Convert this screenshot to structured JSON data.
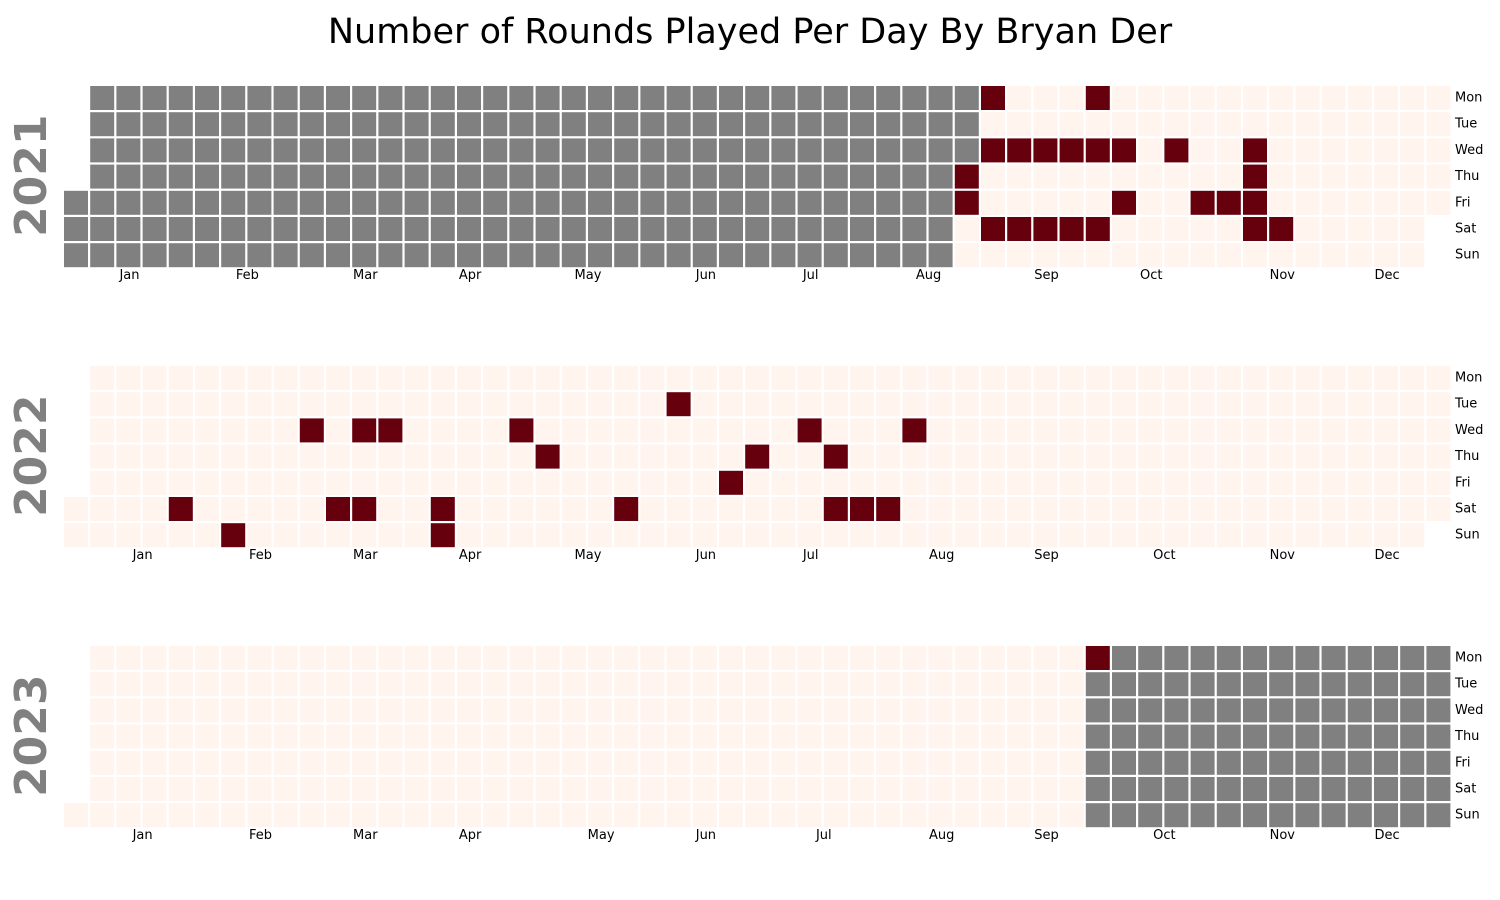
{
  "chart_data": {
    "type": "heatmap",
    "title": "Number of Rounds Played Per Day By Bryan Der",
    "day_labels": [
      "Mon",
      "Tue",
      "Wed",
      "Thu",
      "Fri",
      "Sat",
      "Sun"
    ],
    "month_labels": [
      "Jan",
      "Feb",
      "Mar",
      "Apr",
      "May",
      "Jun",
      "Jul",
      "Aug",
      "Sep",
      "Oct",
      "Nov",
      "Dec"
    ],
    "value_colors": {
      "no_data": "#808080",
      "zero": "#fff4ee",
      "played": "#67000d"
    },
    "years": [
      {
        "year": "2021",
        "data_range": [
          "2021-08-26",
          "2021-12-31"
        ],
        "played_dates": [
          "2021-08-26",
          "2021-08-27",
          "2021-08-30",
          "2021-09-01",
          "2021-09-04",
          "2021-09-08",
          "2021-09-11",
          "2021-09-15",
          "2021-09-18",
          "2021-09-22",
          "2021-09-25",
          "2021-09-27",
          "2021-09-29",
          "2021-10-02",
          "2021-10-06",
          "2021-10-08",
          "2021-10-20",
          "2021-10-29",
          "2021-11-05",
          "2021-11-10",
          "2021-11-11",
          "2021-11-12",
          "2021-11-13",
          "2021-11-20"
        ]
      },
      {
        "year": "2022",
        "data_range": [
          "2022-01-01",
          "2022-12-31"
        ],
        "played_dates": [
          "2022-01-29",
          "2022-02-13",
          "2022-03-02",
          "2022-03-12",
          "2022-03-16",
          "2022-03-19",
          "2022-03-23",
          "2022-04-09",
          "2022-04-10",
          "2022-04-27",
          "2022-05-05",
          "2022-05-28",
          "2022-06-07",
          "2022-06-24",
          "2022-06-30",
          "2022-07-13",
          "2022-07-21",
          "2022-07-23",
          "2022-07-30",
          "2022-08-06",
          "2022-08-10"
        ]
      },
      {
        "year": "2023",
        "data_range": [
          "2023-01-01",
          "2023-09-25"
        ],
        "played_dates": [
          "2023-09-25"
        ]
      }
    ]
  }
}
